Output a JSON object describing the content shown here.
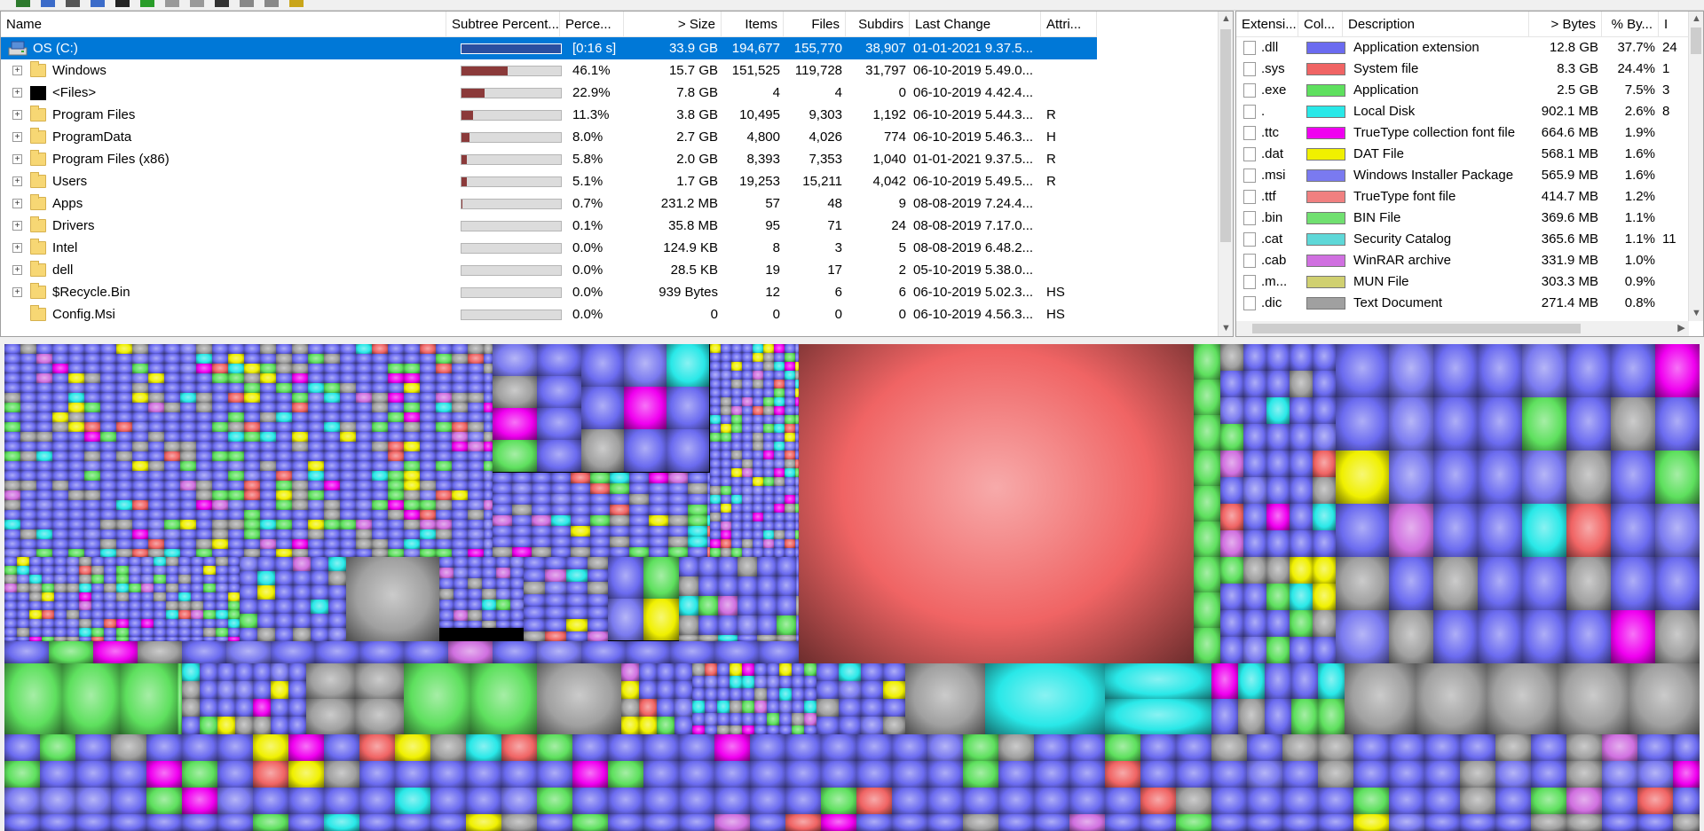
{
  "window": {
    "toolbar_icons": [
      "open-icon",
      "refresh-icon",
      "copy-icon",
      "explorer-icon",
      "command-prompt-icon",
      "refresh-all-icon",
      "delete-icon",
      "cleanup-icon",
      "properties-icon",
      "zoom-in-icon",
      "zoom-out-icon",
      "help-icon"
    ]
  },
  "tree": {
    "columns": {
      "name": "Name",
      "subtree": "Subtree Percent...",
      "percent": "Perce...",
      "size": "> Size",
      "items": "Items",
      "files": "Files",
      "subdirs": "Subdirs",
      "last_change": "Last Change",
      "attributes": "Attri..."
    },
    "rows": [
      {
        "name": "OS (C:)",
        "bar": 1.0,
        "percent": "[0:16 s]",
        "size": "33.9 GB",
        "items": "194,677",
        "files": "155,770",
        "subdirs": "38,907",
        "last_change": "01-01-2021  9.37.5...",
        "attr": "",
        "icon": "drive-icon",
        "expand": false,
        "selected": true
      },
      {
        "name": "Windows",
        "bar": 0.461,
        "percent": "46.1%",
        "size": "15.7 GB",
        "items": "151,525",
        "files": "119,728",
        "subdirs": "31,797",
        "last_change": "06-10-2019  5.49.0...",
        "attr": "",
        "icon": "folder-icon",
        "expand": true
      },
      {
        "name": "<Files>",
        "bar": 0.229,
        "percent": "22.9%",
        "size": "7.8 GB",
        "items": "4",
        "files": "4",
        "subdirs": "0",
        "last_change": "06-10-2019  4.42.4...",
        "attr": "",
        "icon": "files-icon",
        "expand": true
      },
      {
        "name": "Program Files",
        "bar": 0.113,
        "percent": "11.3%",
        "size": "3.8 GB",
        "items": "10,495",
        "files": "9,303",
        "subdirs": "1,192",
        "last_change": "06-10-2019  5.44.3...",
        "attr": "R",
        "icon": "folder-icon",
        "expand": true
      },
      {
        "name": "ProgramData",
        "bar": 0.08,
        "percent": "8.0%",
        "size": "2.7 GB",
        "items": "4,800",
        "files": "4,026",
        "subdirs": "774",
        "last_change": "06-10-2019  5.46.3...",
        "attr": "H",
        "icon": "folder-icon",
        "expand": true
      },
      {
        "name": "Program Files (x86)",
        "bar": 0.058,
        "percent": "5.8%",
        "size": "2.0 GB",
        "items": "8,393",
        "files": "7,353",
        "subdirs": "1,040",
        "last_change": "01-01-2021  9.37.5...",
        "attr": "R",
        "icon": "folder-icon",
        "expand": true
      },
      {
        "name": "Users",
        "bar": 0.051,
        "percent": "5.1%",
        "size": "1.7 GB",
        "items": "19,253",
        "files": "15,211",
        "subdirs": "4,042",
        "last_change": "06-10-2019  5.49.5...",
        "attr": "R",
        "icon": "folder-icon",
        "expand": true
      },
      {
        "name": "Apps",
        "bar": 0.007,
        "percent": "0.7%",
        "size": "231.2 MB",
        "items": "57",
        "files": "48",
        "subdirs": "9",
        "last_change": "08-08-2019  7.24.4...",
        "attr": "",
        "icon": "folder-icon",
        "expand": true
      },
      {
        "name": "Drivers",
        "bar": 0.001,
        "percent": "0.1%",
        "size": "35.8 MB",
        "items": "95",
        "files": "71",
        "subdirs": "24",
        "last_change": "08-08-2019  7.17.0...",
        "attr": "",
        "icon": "folder-icon",
        "expand": true
      },
      {
        "name": "Intel",
        "bar": 0.0,
        "percent": "0.0%",
        "size": "124.9 KB",
        "items": "8",
        "files": "3",
        "subdirs": "5",
        "last_change": "08-08-2019  6.48.2...",
        "attr": "",
        "icon": "folder-icon",
        "expand": true
      },
      {
        "name": "dell",
        "bar": 0.0,
        "percent": "0.0%",
        "size": "28.5 KB",
        "items": "19",
        "files": "17",
        "subdirs": "2",
        "last_change": "05-10-2019  5.38.0...",
        "attr": "",
        "icon": "folder-icon",
        "expand": true
      },
      {
        "name": "$Recycle.Bin",
        "bar": 0.0,
        "percent": "0.0%",
        "size": "939 Bytes",
        "items": "12",
        "files": "6",
        "subdirs": "6",
        "last_change": "06-10-2019  5.02.3...",
        "attr": "HS",
        "icon": "folder-icon",
        "expand": true
      },
      {
        "name": "Config.Msi",
        "bar": 0.0,
        "percent": "0.0%",
        "size": "0",
        "items": "0",
        "files": "0",
        "subdirs": "0",
        "last_change": "06-10-2019  4.56.3...",
        "attr": "HS",
        "icon": "folder-icon",
        "expand": false
      }
    ]
  },
  "extensions": {
    "columns": {
      "ext": "Extensi...",
      "color": "Col...",
      "description": "Description",
      "bytes": "> Bytes",
      "pct_bytes": "% By...",
      "files": "I"
    },
    "rows": [
      {
        "ext": ".dll",
        "color": "#6b6bf0",
        "description": "Application extension",
        "bytes": "12.8 GB",
        "pct": "37.7%",
        "files": "24"
      },
      {
        "ext": ".sys",
        "color": "#f06464",
        "description": "System file",
        "bytes": "8.3 GB",
        "pct": "24.4%",
        "files": "1"
      },
      {
        "ext": ".exe",
        "color": "#5ee05e",
        "description": "Application",
        "bytes": "2.5 GB",
        "pct": "7.5%",
        "files": "3"
      },
      {
        "ext": ".",
        "color": "#29e8e8",
        "description": "Local Disk",
        "bytes": "902.1 MB",
        "pct": "2.6%",
        "files": "8"
      },
      {
        "ext": ".ttc",
        "color": "#f000f0",
        "description": "TrueType collection font file",
        "bytes": "664.6 MB",
        "pct": "1.9%",
        "files": ""
      },
      {
        "ext": ".dat",
        "color": "#f0f000",
        "description": "DAT File",
        "bytes": "568.1 MB",
        "pct": "1.6%",
        "files": ""
      },
      {
        "ext": ".msi",
        "color": "#7a7af0",
        "description": "Windows Installer Package",
        "bytes": "565.9 MB",
        "pct": "1.6%",
        "files": ""
      },
      {
        "ext": ".ttf",
        "color": "#f08080",
        "description": "TrueType font file",
        "bytes": "414.7 MB",
        "pct": "1.2%",
        "files": ""
      },
      {
        "ext": ".bin",
        "color": "#70e070",
        "description": "BIN File",
        "bytes": "369.6 MB",
        "pct": "1.1%",
        "files": ""
      },
      {
        "ext": ".cat",
        "color": "#5ed8d8",
        "description": "Security Catalog",
        "bytes": "365.6 MB",
        "pct": "1.1%",
        "files": "11"
      },
      {
        "ext": ".cab",
        "color": "#d070e0",
        "description": "WinRAR archive",
        "bytes": "331.9 MB",
        "pct": "1.0%",
        "files": ""
      },
      {
        "ext": ".m...",
        "color": "#d0d070",
        "description": "MUN File",
        "bytes": "303.3 MB",
        "pct": "0.9%",
        "files": ""
      },
      {
        "ext": ".dic",
        "color": "#a0a0a0",
        "description": "Text Document",
        "bytes": "271.4 MB",
        "pct": "0.8%",
        "files": ""
      }
    ]
  },
  "colors": {
    "selection": "#0078d7",
    "subtree_bar": "#8b3a3a"
  }
}
